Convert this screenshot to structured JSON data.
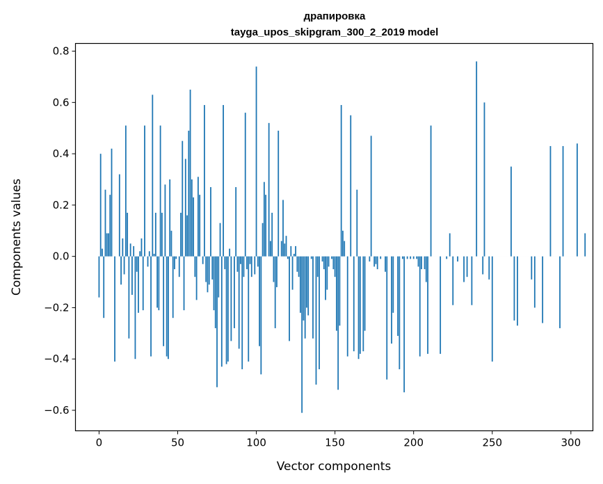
{
  "chart_data": {
    "type": "bar",
    "title": "драпировка",
    "subtitle": "tayga_upos_skipgram_300_2_2019 model",
    "xlabel": "Vector components",
    "ylabel": "Components values",
    "xlim": [
      -15,
      314
    ],
    "ylim": [
      -0.68,
      0.83
    ],
    "xticks": [
      0,
      50,
      100,
      150,
      200,
      250,
      300
    ],
    "xtick_labels": [
      "0",
      "50",
      "100",
      "150",
      "200",
      "250",
      "300"
    ],
    "yticks": [
      -0.6,
      -0.4,
      -0.2,
      0.0,
      0.2,
      0.4,
      0.6,
      0.8
    ],
    "ytick_labels": [
      "−0.6",
      "−0.4",
      "−0.2",
      "0.0",
      "0.2",
      "0.4",
      "0.6",
      "0.8"
    ],
    "bar_color": "#1f77b4",
    "grid": false,
    "values": [
      -0.16,
      0.4,
      0.03,
      -0.24,
      0.26,
      0.09,
      0.09,
      0.24,
      0.42,
      0.0,
      -0.41,
      0.0,
      0.0,
      0.32,
      -0.11,
      0.07,
      -0.07,
      0.51,
      0.17,
      -0.32,
      0.05,
      -0.15,
      0.04,
      -0.4,
      -0.06,
      -0.22,
      0.02,
      0.07,
      -0.21,
      0.51,
      0.0,
      -0.04,
      0.02,
      -0.39,
      0.63,
      0.01,
      0.17,
      -0.2,
      -0.21,
      0.51,
      0.17,
      -0.35,
      0.28,
      -0.39,
      -0.4,
      0.3,
      0.1,
      -0.24,
      -0.05,
      -0.01,
      0.0,
      -0.08,
      0.17,
      0.45,
      -0.21,
      0.38,
      0.16,
      0.49,
      0.65,
      0.3,
      0.23,
      -0.08,
      -0.17,
      0.31,
      0.24,
      0.0,
      -0.03,
      0.59,
      -0.1,
      -0.14,
      -0.11,
      0.27,
      -0.09,
      -0.21,
      -0.28,
      -0.51,
      -0.16,
      0.13,
      -0.43,
      0.59,
      -0.05,
      -0.42,
      -0.41,
      0.03,
      -0.33,
      0.0,
      -0.28,
      0.27,
      -0.06,
      -0.36,
      -0.03,
      -0.44,
      -0.08,
      0.56,
      -0.05,
      -0.41,
      -0.03,
      -0.08,
      0.0,
      -0.07,
      0.74,
      -0.04,
      -0.35,
      -0.46,
      0.13,
      0.29,
      0.24,
      0.0,
      0.52,
      0.06,
      0.17,
      -0.1,
      -0.28,
      -0.12,
      0.49,
      0.0,
      0.06,
      0.22,
      0.05,
      0.08,
      -0.01,
      -0.33,
      0.04,
      -0.13,
      0.01,
      0.04,
      -0.06,
      -0.08,
      -0.22,
      -0.61,
      -0.25,
      -0.32,
      -0.2,
      -0.23,
      0.0,
      -0.01,
      -0.32,
      0.0,
      -0.5,
      -0.08,
      -0.44,
      0.0,
      -0.02,
      -0.05,
      -0.17,
      -0.13,
      -0.04,
      0.0,
      -0.01,
      -0.05,
      -0.08,
      -0.29,
      -0.52,
      -0.27,
      0.59,
      0.1,
      0.06,
      0.0,
      -0.39,
      0.0,
      0.55,
      0.0,
      -0.37,
      0.0,
      0.26,
      -0.4,
      -0.38,
      0.0,
      -0.37,
      -0.29,
      0.0,
      0.0,
      -0.02,
      0.47,
      0.0,
      -0.04,
      -0.03,
      -0.05,
      0.0,
      -0.01,
      0.0,
      0.0,
      -0.06,
      -0.48,
      0.0,
      0.0,
      -0.34,
      -0.22,
      0.0,
      0.0,
      -0.31,
      -0.44,
      0.0,
      -0.01,
      -0.53,
      0.0,
      -0.01,
      0.0,
      -0.01,
      0.0,
      -0.01,
      0.0,
      -0.01,
      -0.04,
      -0.39,
      -0.05,
      0.0,
      -0.05,
      -0.1,
      -0.38,
      0.0,
      0.51,
      0.0,
      0.0,
      0.0,
      0.0,
      0.0,
      -0.38,
      0.0,
      0.0,
      0.0,
      -0.01,
      0.0,
      0.09,
      0.0,
      -0.19,
      0.0,
      0.0,
      -0.02,
      0.0,
      0.0,
      0.0,
      -0.1,
      0.0,
      -0.08,
      0.0,
      0.0,
      -0.19,
      0.0,
      0.0,
      0.76,
      0.0,
      0.0,
      0.0,
      -0.07,
      0.6,
      0.0,
      0.0,
      -0.09,
      0.0,
      -0.41,
      0.0,
      0.0,
      0.0,
      0.0,
      0.0,
      0.0,
      0.0,
      0.0,
      0.0,
      0.0,
      0.0,
      0.35,
      0.0,
      -0.25,
      0.0,
      -0.27,
      0.0,
      0.0,
      0.0,
      0.0,
      0.0,
      0.0,
      0.0,
      0.0,
      -0.09,
      0.0,
      -0.2,
      0.0,
      0.0,
      0.0,
      0.0,
      -0.26,
      0.0,
      0.0,
      0.0,
      0.0,
      0.43,
      0.0,
      0.0,
      0.0,
      0.0,
      0.0,
      -0.28,
      0.0,
      0.43,
      0.0,
      0.0,
      0.0,
      0.0,
      0.0,
      0.0,
      0.0,
      0.0,
      0.44,
      0.0,
      0.0,
      0.0,
      0.0,
      0.09,
      0.0,
      0.0,
      0.0,
      0.0,
      0.0
    ]
  }
}
